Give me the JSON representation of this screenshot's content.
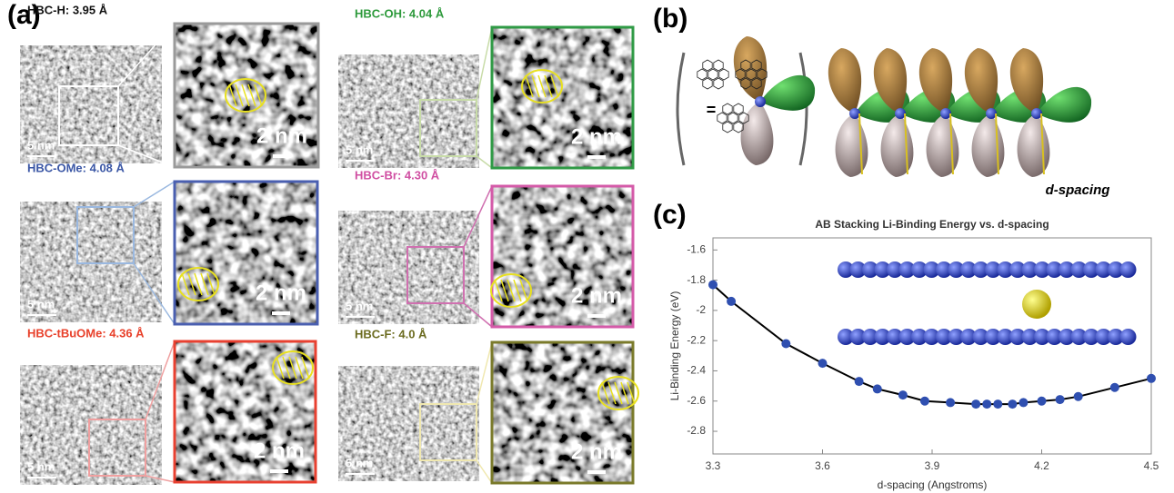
{
  "panel_labels": [
    "(a)",
    "(b)",
    "(c)"
  ],
  "tem_images": [
    {
      "label": "HBC-H: 3.95 Å",
      "label_color": "#111111",
      "color": "#9a9a9a",
      "box_color": "#ffffff",
      "scale_wide": "5 nm",
      "scale_zoom": "2 nm"
    },
    {
      "label": "HBC-OMe: 4.08 Å",
      "label_color": "#3a56a5",
      "color": "#4a5fb0",
      "box_color": "#9ab8e0",
      "scale_wide": "5 nm",
      "scale_zoom": "2 nm"
    },
    {
      "label": "HBC-tBuOMe: 4.36 Å",
      "label_color": "#e8402a",
      "color": "#e84030",
      "box_color": "#f0a0a0",
      "scale_wide": "5 nm",
      "scale_zoom": "2 nm"
    },
    {
      "label": "HBC-OH: 4.04 Å",
      "label_color": "#2e9a3c",
      "color": "#2f9a45",
      "box_color": "#c8dca8",
      "scale_wide": "5 nm",
      "scale_zoom": "2 nm"
    },
    {
      "label": "HBC-Br: 4.30 Å",
      "label_color": "#d04fa2",
      "color": "#d45aa8",
      "box_color": "#d070b0",
      "scale_wide": "5 nm",
      "scale_zoom": "2 nm"
    },
    {
      "label": "HBC-F: 4.0 Å",
      "label_color": "#6b6b1f",
      "color": "#7a7a2a",
      "box_color": "#f0e8b0",
      "scale_wide": "5 nm",
      "scale_zoom": "2 nm"
    }
  ],
  "spacing_label": "d-spacing",
  "chart_data": {
    "type": "scatter",
    "title": "AB Stacking Li-Binding Energy vs. d-spacing",
    "x_label": "d-spacing (Angstroms)",
    "y_label": "Li-Binding Energy (eV)",
    "x": [
      3.3,
      3.35,
      3.5,
      3.6,
      3.7,
      3.75,
      3.82,
      3.88,
      3.95,
      4.02,
      4.05,
      4.08,
      4.12,
      4.15,
      4.2,
      4.25,
      4.3,
      4.4,
      4.5
    ],
    "values": [
      -1.83,
      -1.94,
      -2.22,
      -2.35,
      -2.47,
      -2.52,
      -2.56,
      -2.6,
      -2.61,
      -2.62,
      -2.62,
      -2.62,
      -2.62,
      -2.61,
      -2.6,
      -2.59,
      -2.57,
      -2.51,
      -2.45
    ],
    "color": "#2f4fb0",
    "line_color": "#000000",
    "xlim": [
      3.3,
      4.5
    ],
    "xticks": [
      3.3,
      3.6,
      3.9,
      4.2,
      4.5
    ],
    "ylim": [
      -2.95,
      -1.52
    ],
    "yticks": [
      -1.6,
      -1.8,
      -2,
      -2.2,
      -2.4,
      -2.6,
      -2.8
    ]
  }
}
